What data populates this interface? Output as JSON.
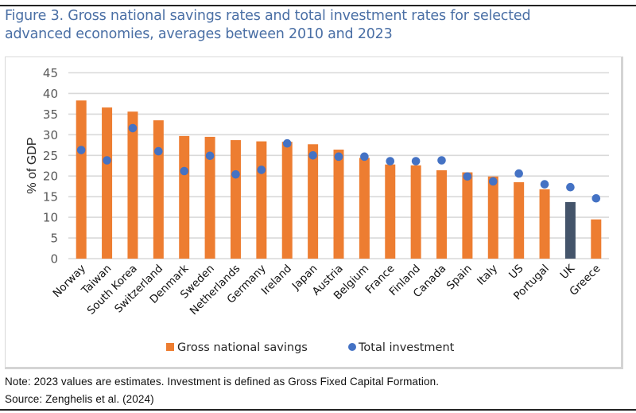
{
  "figure": {
    "title": "Figure 3. Gross national savings rates and total investment rates for selected advanced economies, averages between 2010 and 2023",
    "title_line1": "Figure 3. Gross national savings rates and total investment rates for selected",
    "title_line2": "advanced economies, averages between 2010 and 2023",
    "note": "Note: 2023 values are estimates. Investment is defined as Gross Fixed Capital Formation.",
    "source": "Source: Zenghelis et al. (2024)"
  },
  "colors": {
    "title": "#4a6fa5",
    "savings_bar": "#ed7d31",
    "savings_bar_highlight": "#44546a",
    "investment_dot": "#4472c4",
    "gridline": "#d9d9d9",
    "axis_text": "#595959"
  },
  "chart_data": {
    "type": "bar",
    "title": "Figure 3. Gross national savings rates and total investment rates for selected advanced economies, averages between 2010 and 2023",
    "xlabel": "",
    "ylabel": "% of GDP",
    "ylim": [
      0,
      45
    ],
    "yticks": [
      0,
      5,
      10,
      15,
      20,
      25,
      30,
      35,
      40,
      45
    ],
    "grid": true,
    "legend_position": "bottom",
    "categories": [
      "Norway",
      "Taiwan",
      "South Korea",
      "Switzerland",
      "Denmark",
      "Sweden",
      "Netherlands",
      "Germany",
      "Ireland",
      "Japan",
      "Austria",
      "Belgium",
      "France",
      "Finland",
      "Canada",
      "Spain",
      "Italy",
      "US",
      "Portugal",
      "UK",
      "Greece"
    ],
    "highlight_category": "UK",
    "series": [
      {
        "name": "Gross national savings",
        "type": "bar",
        "values": [
          38.3,
          36.6,
          35.6,
          33.5,
          29.7,
          29.5,
          28.7,
          28.4,
          28.3,
          27.7,
          26.4,
          24.4,
          22.8,
          22.6,
          21.4,
          20.9,
          19.9,
          18.5,
          16.8,
          13.7,
          9.5
        ]
      },
      {
        "name": "Total investment",
        "type": "scatter",
        "values": [
          26.3,
          23.8,
          31.6,
          26.0,
          21.2,
          24.9,
          20.4,
          21.5,
          27.9,
          25.0,
          24.7,
          24.7,
          23.6,
          23.6,
          23.8,
          19.9,
          18.7,
          20.6,
          18.0,
          17.3,
          14.6
        ]
      }
    ]
  }
}
